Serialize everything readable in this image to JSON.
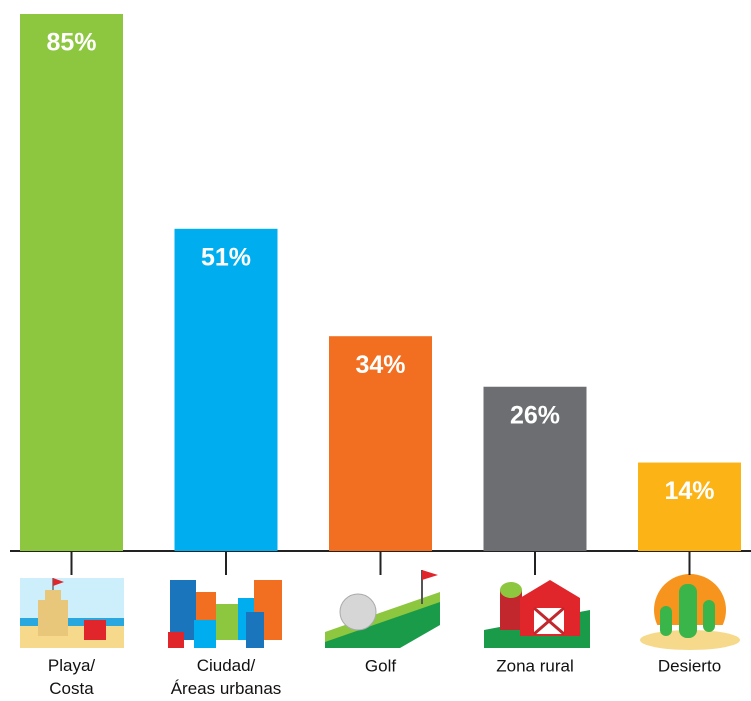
{
  "chart_data": {
    "type": "bar",
    "categories": [
      "Playa/\nCosta",
      "Ciudad/\nÁreas urbanas",
      "Golf",
      "Zona rural",
      "Desierto"
    ],
    "values": [
      85,
      51,
      34,
      26,
      14
    ],
    "value_labels": [
      "85%",
      "51%",
      "34%",
      "26%",
      "14%"
    ],
    "colors": [
      "#8dc63f",
      "#00aeef",
      "#f26f21",
      "#6d6e71",
      "#fbb316"
    ]
  }
}
